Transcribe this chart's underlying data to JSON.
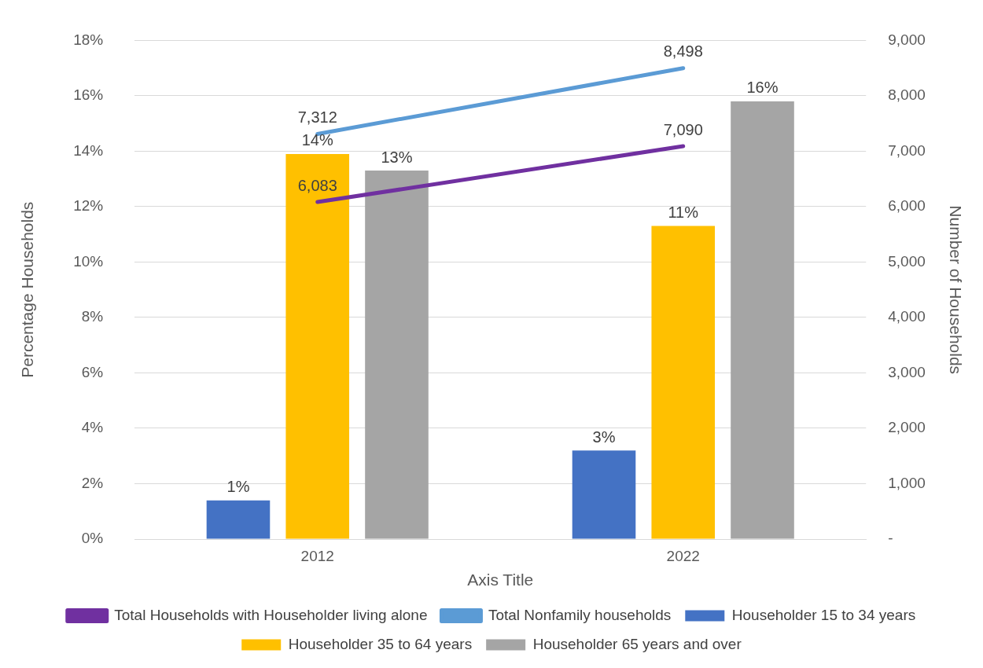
{
  "chart_data": {
    "type": "bar",
    "categories": [
      "2012",
      "2022"
    ],
    "xlabel": "Axis Title",
    "ylabel": "Percentage Households",
    "y2label": "Number of Households",
    "series": [
      {
        "name": "Householder 15 to 34 years",
        "color": "#4472c4",
        "values": [
          1.4,
          3.2
        ],
        "value_labels": [
          "1%",
          "3%"
        ]
      },
      {
        "name": "Householder 35 to 64 years",
        "color": "#ffc000",
        "values": [
          13.9,
          11.3
        ],
        "value_labels": [
          "14%",
          "11%"
        ]
      },
      {
        "name": "Householder 65 years and over",
        "color": "#a5a5a5",
        "values": [
          13.3,
          15.8
        ],
        "value_labels": [
          "13%",
          "16%"
        ]
      },
      {
        "name": "Total Households with Householder living alone",
        "type": "line",
        "axis": "y2",
        "color": "#7030a0",
        "values": [
          6083,
          7090
        ],
        "value_labels": [
          "6,083",
          "7,090"
        ]
      },
      {
        "name": "Total Nonfamily households",
        "type": "line",
        "axis": "y2",
        "color": "#5b9bd5",
        "values": [
          7312,
          8498
        ],
        "value_labels": [
          "7,312",
          "8,498"
        ]
      }
    ],
    "ylim": [
      0,
      18
    ],
    "yticks": [
      {
        "value": 0,
        "label": "0%"
      },
      {
        "value": 2,
        "label": "2%"
      },
      {
        "value": 4,
        "label": "4%"
      },
      {
        "value": 6,
        "label": "6%"
      },
      {
        "value": 8,
        "label": "8%"
      },
      {
        "value": 10,
        "label": "10%"
      },
      {
        "value": 12,
        "label": "12%"
      },
      {
        "value": 14,
        "label": "14%"
      },
      {
        "value": 16,
        "label": "16%"
      },
      {
        "value": 18,
        "label": "18%"
      }
    ],
    "y2lim": [
      0,
      9000
    ],
    "y2ticks": [
      {
        "value": 0,
        "label": "-"
      },
      {
        "value": 1000,
        "label": "1,000"
      },
      {
        "value": 2000,
        "label": "2,000"
      },
      {
        "value": 3000,
        "label": "3,000"
      },
      {
        "value": 4000,
        "label": "4,000"
      },
      {
        "value": 5000,
        "label": "5,000"
      },
      {
        "value": 6000,
        "label": "6,000"
      },
      {
        "value": 7000,
        "label": "7,000"
      },
      {
        "value": 8000,
        "label": "8,000"
      },
      {
        "value": 9000,
        "label": "9,000"
      }
    ],
    "grid": "y",
    "legend": "bottom",
    "marker": "none",
    "line_style": "solid"
  }
}
